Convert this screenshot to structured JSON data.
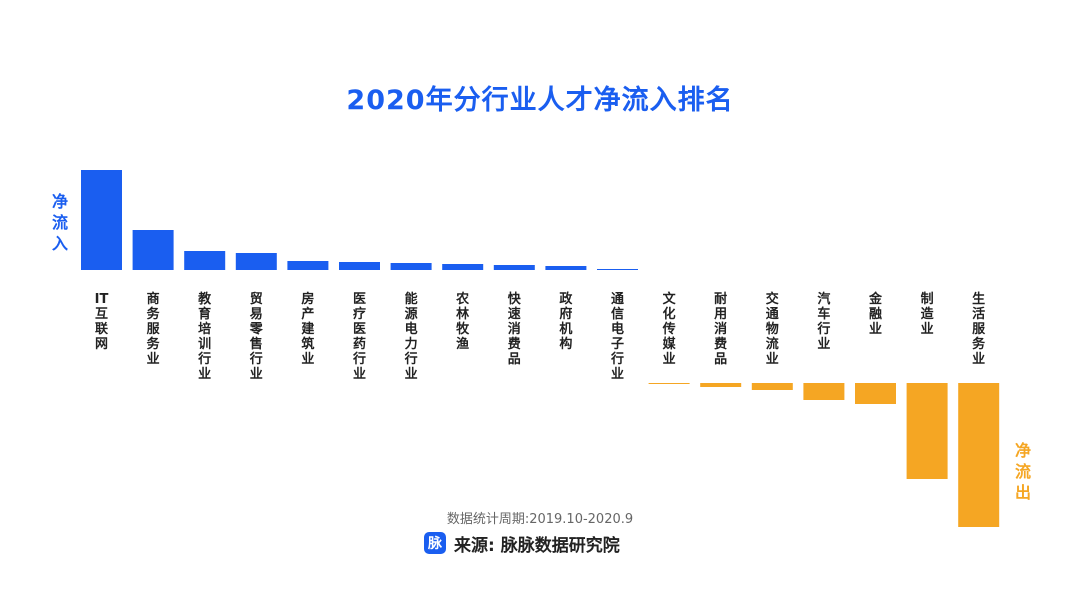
{
  "title": "2020年分行业人才净流入排名",
  "side_labels": {
    "inflow": "净流入",
    "outflow": "净流出"
  },
  "footer": {
    "period": "数据统计周期:2019.10-2020.9",
    "logo_char": "脉",
    "source": "来源: 脉脉数据研究院"
  },
  "colors": {
    "inflow": "#1a5ef0",
    "outflow": "#f5a623",
    "title": "#1a5ef0"
  },
  "chart_data": {
    "type": "bar",
    "categories": [
      "IT互联网",
      "商务服务业",
      "教育培训行业",
      "贸易零售行业",
      "房产建筑业",
      "医疗医药行业",
      "能源电力行业",
      "农林牧渔",
      "快速消费品",
      "政府机构",
      "通信电子行业",
      "文化传媒业",
      "耐用消费品",
      "交通物流业",
      "汽车行业",
      "金融业",
      "制造业",
      "生活服务业"
    ],
    "values": [
      100,
      40,
      19,
      17,
      9,
      8,
      7,
      6,
      5,
      4,
      0.5,
      -1,
      -4,
      -7,
      -17,
      -21,
      -96,
      -144
    ],
    "title": "2020年分行业人才净流入排名",
    "xlabel": "",
    "ylabel": "",
    "grid": false,
    "legend": "none"
  }
}
